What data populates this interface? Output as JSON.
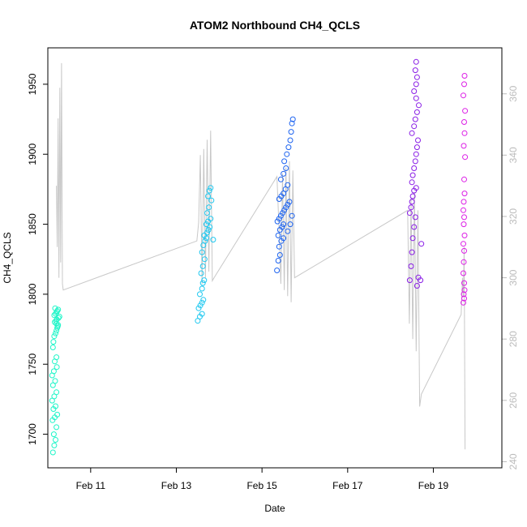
{
  "chart_data": {
    "type": "scatter",
    "title": "ATOM2 Northbound CH4_QCLS",
    "xlabel": "Date",
    "ylabel": "CH4_QCLS",
    "xlim": [
      10.0,
      20.6
    ],
    "ylim": [
      1676,
      1976
    ],
    "y2lim": [
      238,
      375
    ],
    "x_ticks": [
      {
        "value": 11,
        "label": "Feb 11"
      },
      {
        "value": 13,
        "label": "Feb 13"
      },
      {
        "value": 15,
        "label": "Feb 15"
      },
      {
        "value": 17,
        "label": "Feb 17"
      },
      {
        "value": 19,
        "label": "Feb 19"
      }
    ],
    "y_ticks": [
      1700,
      1750,
      1800,
      1850,
      1900,
      1950
    ],
    "y2_ticks": [
      240,
      260,
      280,
      300,
      320,
      340,
      360
    ],
    "series": [
      {
        "color": "#1ef5c8",
        "points": [
          [
            10.12,
            1687
          ],
          [
            10.15,
            1692
          ],
          [
            10.18,
            1696
          ],
          [
            10.14,
            1700
          ],
          [
            10.2,
            1705
          ],
          [
            10.11,
            1710
          ],
          [
            10.16,
            1712
          ],
          [
            10.22,
            1714
          ],
          [
            10.13,
            1718
          ],
          [
            10.18,
            1720
          ],
          [
            10.1,
            1724
          ],
          [
            10.15,
            1727
          ],
          [
            10.2,
            1730
          ],
          [
            10.12,
            1735
          ],
          [
            10.17,
            1738
          ],
          [
            10.1,
            1742
          ],
          [
            10.14,
            1745
          ],
          [
            10.21,
            1748
          ],
          [
            10.16,
            1752
          ],
          [
            10.2,
            1755
          ],
          [
            10.12,
            1762
          ],
          [
            10.13,
            1766
          ],
          [
            10.15,
            1770
          ],
          [
            10.18,
            1772
          ],
          [
            10.2,
            1774
          ],
          [
            10.22,
            1776
          ],
          [
            10.24,
            1778
          ],
          [
            10.16,
            1780
          ],
          [
            10.19,
            1781
          ],
          [
            10.21,
            1782
          ],
          [
            10.25,
            1783
          ],
          [
            10.27,
            1784
          ],
          [
            10.15,
            1785
          ],
          [
            10.18,
            1786
          ],
          [
            10.2,
            1787
          ],
          [
            10.22,
            1788
          ],
          [
            10.24,
            1789
          ],
          [
            10.17,
            1790
          ],
          [
            10.2,
            1779
          ],
          [
            10.23,
            1777
          ]
        ]
      },
      {
        "color": "#1ec8f0",
        "points": [
          [
            13.5,
            1781
          ],
          [
            13.55,
            1784
          ],
          [
            13.6,
            1786
          ],
          [
            13.52,
            1790
          ],
          [
            13.56,
            1792
          ],
          [
            13.6,
            1794
          ],
          [
            13.63,
            1796
          ],
          [
            13.55,
            1800
          ],
          [
            13.6,
            1804
          ],
          [
            13.62,
            1808
          ],
          [
            13.65,
            1810
          ],
          [
            13.58,
            1815
          ],
          [
            13.62,
            1820
          ],
          [
            13.66,
            1825
          ],
          [
            13.6,
            1830
          ],
          [
            13.63,
            1835
          ],
          [
            13.67,
            1838
          ],
          [
            13.7,
            1840
          ],
          [
            13.65,
            1842
          ],
          [
            13.72,
            1844
          ],
          [
            13.75,
            1846
          ],
          [
            13.78,
            1848
          ],
          [
            13.7,
            1850
          ],
          [
            13.74,
            1852
          ],
          [
            13.8,
            1854
          ],
          [
            13.72,
            1858
          ],
          [
            13.76,
            1862
          ],
          [
            13.82,
            1867
          ],
          [
            13.74,
            1870
          ],
          [
            13.77,
            1874
          ],
          [
            13.8,
            1876
          ],
          [
            13.86,
            1839
          ]
        ]
      },
      {
        "color": "#1e64f0",
        "points": [
          [
            15.35,
            1817
          ],
          [
            15.38,
            1824
          ],
          [
            15.42,
            1828
          ],
          [
            15.4,
            1834
          ],
          [
            15.45,
            1838
          ],
          [
            15.38,
            1842
          ],
          [
            15.42,
            1846
          ],
          [
            15.47,
            1848
          ],
          [
            15.5,
            1850
          ],
          [
            15.36,
            1852
          ],
          [
            15.4,
            1854
          ],
          [
            15.44,
            1856
          ],
          [
            15.48,
            1858
          ],
          [
            15.52,
            1860
          ],
          [
            15.56,
            1862
          ],
          [
            15.6,
            1864
          ],
          [
            15.64,
            1866
          ],
          [
            15.4,
            1868
          ],
          [
            15.45,
            1870
          ],
          [
            15.5,
            1872
          ],
          [
            15.55,
            1875
          ],
          [
            15.6,
            1878
          ],
          [
            15.44,
            1882
          ],
          [
            15.5,
            1886
          ],
          [
            15.56,
            1890
          ],
          [
            15.52,
            1895
          ],
          [
            15.58,
            1900
          ],
          [
            15.62,
            1905
          ],
          [
            15.66,
            1910
          ],
          [
            15.68,
            1916
          ],
          [
            15.7,
            1922
          ],
          [
            15.72,
            1925
          ],
          [
            15.6,
            1845
          ],
          [
            15.66,
            1850
          ],
          [
            15.7,
            1856
          ],
          [
            15.5,
            1840
          ]
        ]
      },
      {
        "color": "#8a1ee6",
        "points": [
          [
            18.45,
            1810
          ],
          [
            18.48,
            1820
          ],
          [
            18.5,
            1830
          ],
          [
            18.52,
            1840
          ],
          [
            18.55,
            1848
          ],
          [
            18.58,
            1855
          ],
          [
            18.62,
            1806
          ],
          [
            18.65,
            1812
          ],
          [
            18.45,
            1858
          ],
          [
            18.48,
            1862
          ],
          [
            18.5,
            1866
          ],
          [
            18.52,
            1870
          ],
          [
            18.55,
            1874
          ],
          [
            18.6,
            1876
          ],
          [
            18.5,
            1880
          ],
          [
            18.52,
            1885
          ],
          [
            18.55,
            1890
          ],
          [
            18.58,
            1895
          ],
          [
            18.6,
            1900
          ],
          [
            18.62,
            1905
          ],
          [
            18.64,
            1910
          ],
          [
            18.5,
            1915
          ],
          [
            18.55,
            1920
          ],
          [
            18.58,
            1925
          ],
          [
            18.62,
            1930
          ],
          [
            18.66,
            1935
          ],
          [
            18.6,
            1940
          ],
          [
            18.55,
            1945
          ],
          [
            18.6,
            1950
          ],
          [
            18.62,
            1955
          ],
          [
            18.58,
            1960
          ],
          [
            18.6,
            1966
          ],
          [
            18.7,
            1810
          ],
          [
            18.72,
            1836
          ]
        ]
      },
      {
        "color": "#dc1ee6",
        "points": [
          [
            19.7,
            1794
          ],
          [
            19.72,
            1797
          ],
          [
            19.71,
            1800
          ],
          [
            19.73,
            1803
          ],
          [
            19.72,
            1808
          ],
          [
            19.7,
            1815
          ],
          [
            19.71,
            1823
          ],
          [
            19.72,
            1831
          ],
          [
            19.7,
            1836
          ],
          [
            19.73,
            1842
          ],
          [
            19.71,
            1850
          ],
          [
            19.72,
            1855
          ],
          [
            19.7,
            1860
          ],
          [
            19.71,
            1866
          ],
          [
            19.73,
            1872
          ],
          [
            19.72,
            1882
          ],
          [
            19.74,
            1898
          ],
          [
            19.71,
            1906
          ],
          [
            19.73,
            1915
          ],
          [
            19.72,
            1923
          ],
          [
            19.74,
            1931
          ],
          [
            19.7,
            1942
          ],
          [
            19.72,
            1950
          ],
          [
            19.73,
            1956
          ]
        ]
      }
    ],
    "line_series": {
      "color": "#c8c8c8",
      "axis": "y2",
      "points": [
        [
          10.2,
          330
        ],
        [
          10.22,
          310
        ],
        [
          10.24,
          352
        ],
        [
          10.26,
          300
        ],
        [
          10.28,
          362
        ],
        [
          10.3,
          305
        ],
        [
          10.32,
          370
        ],
        [
          10.34,
          298
        ],
        [
          10.36,
          296
        ],
        [
          13.48,
          312
        ],
        [
          13.52,
          318
        ],
        [
          13.56,
          340
        ],
        [
          13.6,
          298
        ],
        [
          13.64,
          342
        ],
        [
          13.68,
          300
        ],
        [
          13.72,
          345
        ],
        [
          13.76,
          302
        ],
        [
          13.8,
          348
        ],
        [
          13.84,
          299
        ],
        [
          13.88,
          300
        ],
        [
          15.35,
          333
        ],
        [
          15.4,
          315
        ],
        [
          15.44,
          298
        ],
        [
          15.48,
          334
        ],
        [
          15.52,
          296
        ],
        [
          15.56,
          336
        ],
        [
          15.6,
          294
        ],
        [
          15.64,
          338
        ],
        [
          15.68,
          292
        ],
        [
          15.72,
          335
        ],
        [
          15.76,
          300
        ],
        [
          18.4,
          322
        ],
        [
          18.44,
          285
        ],
        [
          18.48,
          326
        ],
        [
          18.52,
          280
        ],
        [
          18.56,
          328
        ],
        [
          18.6,
          276
        ],
        [
          18.64,
          322
        ],
        [
          18.68,
          258
        ],
        [
          18.72,
          262
        ],
        [
          19.65,
          288
        ],
        [
          19.68,
          300
        ],
        [
          19.7,
          294
        ],
        [
          19.72,
          310
        ],
        [
          19.74,
          244
        ]
      ]
    }
  }
}
